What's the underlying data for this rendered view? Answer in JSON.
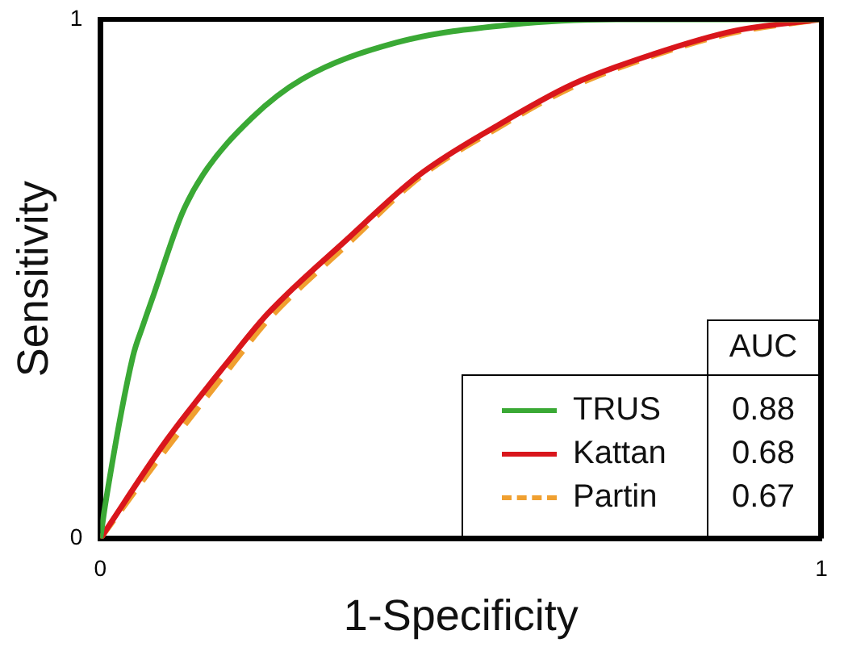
{
  "chart_data": {
    "type": "line",
    "xlabel": "1-Specificity",
    "ylabel": "Sensitivity",
    "xlim": [
      0,
      1
    ],
    "ylim": [
      0,
      1
    ],
    "xticks": [
      0,
      1
    ],
    "yticks": [
      0,
      1
    ],
    "grid": false,
    "legend": "bottom right",
    "marker": "none",
    "legend_title": "AUC",
    "annotations": [
      "0.88",
      "0.68",
      "0.67"
    ],
    "series": [
      {
        "name": "TRUS",
        "color": "#3aa935",
        "line_style": "solid",
        "x": [
          0,
          0.007,
          0.045,
          0.059,
          0.074,
          0.113,
          0.142,
          0.21,
          0.28,
          0.41,
          0.57,
          0.73,
          1
        ],
        "values": [
          0,
          0.067,
          0.35,
          0.41,
          0.47,
          0.625,
          0.7,
          0.81,
          0.885,
          0.955,
          0.99,
          1,
          1
        ]
      },
      {
        "name": "Kattan",
        "color": "#d9161c",
        "line_style": "solid",
        "x": [
          0,
          0.09,
          0.18,
          0.232,
          0.345,
          0.442,
          0.55,
          0.655,
          0.767,
          0.88,
          1
        ],
        "values": [
          0,
          0.186,
          0.346,
          0.433,
          0.58,
          0.7,
          0.795,
          0.875,
          0.933,
          0.978,
          1
        ]
      },
      {
        "name": "Partin",
        "color": "#f0a030",
        "line_style": "dashed",
        "x": [
          0,
          0.09,
          0.18,
          0.232,
          0.345,
          0.442,
          0.55,
          0.655,
          0.767,
          0.88,
          1
        ],
        "values": [
          0,
          0.17,
          0.33,
          0.42,
          0.57,
          0.695,
          0.79,
          0.87,
          0.93,
          0.975,
          1
        ]
      }
    ]
  }
}
